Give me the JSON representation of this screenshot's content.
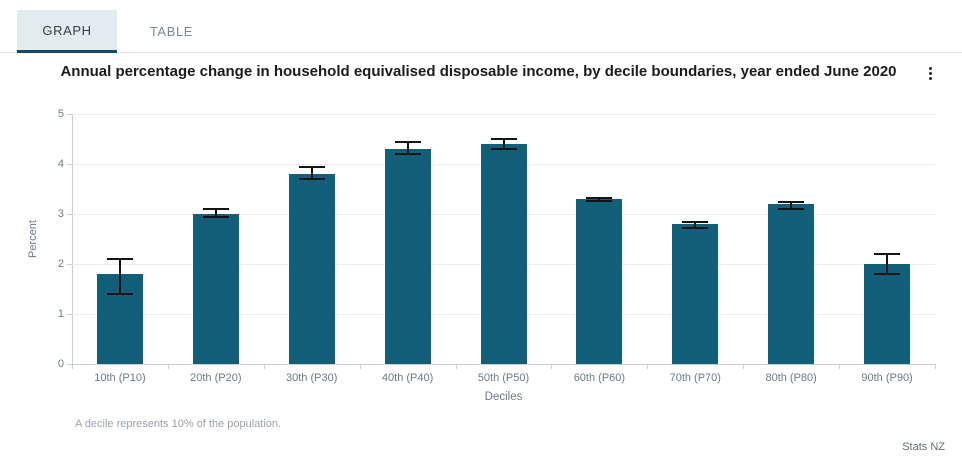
{
  "tabs": [
    {
      "label": "GRAPH",
      "active": true
    },
    {
      "label": "TABLE",
      "active": false
    }
  ],
  "header": {
    "menu_icon": "kebab-vertical-icon"
  },
  "chart_data": {
    "type": "bar",
    "title": "Annual percentage change in household equivalised disposable income, by decile boundaries, year ended June 2020",
    "categories": [
      "10th (P10)",
      "20th (P20)",
      "30th (P30)",
      "40th (P40)",
      "50th (P50)",
      "60th (P60)",
      "70th (P70)",
      "80th (P80)",
      "90th (P90)"
    ],
    "values": [
      1.8,
      3.0,
      3.8,
      4.3,
      4.4,
      3.3,
      2.8,
      3.2,
      2.0
    ],
    "error_low": [
      1.4,
      2.95,
      3.7,
      4.2,
      4.3,
      3.27,
      2.73,
      3.1,
      1.8
    ],
    "error_high": [
      2.1,
      3.1,
      3.95,
      4.45,
      4.5,
      3.33,
      2.85,
      3.25,
      2.2
    ],
    "xlabel": "Deciles",
    "ylabel": "Percent",
    "ylim": [
      0,
      5
    ],
    "yticks": [
      0,
      1,
      2,
      3,
      4,
      5
    ],
    "grid": true,
    "legend": "none"
  },
  "footnote": "A decile represents 10% of the population.",
  "source": "Stats NZ",
  "colors": {
    "accent": "#0d4f66",
    "bar": "#135e78",
    "error_bar": "#141414",
    "tab_active_bg": "#e2ecef"
  }
}
